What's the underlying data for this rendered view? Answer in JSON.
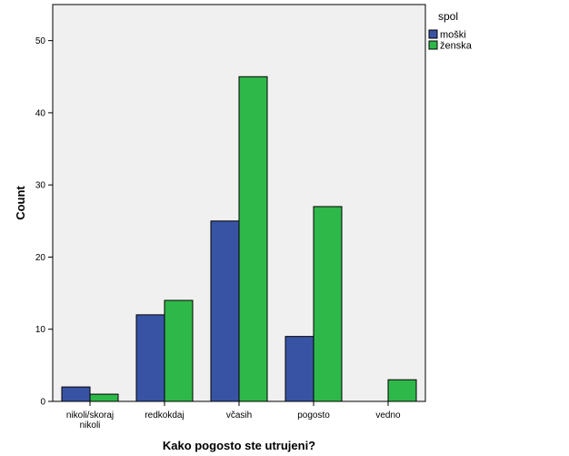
{
  "chart_data": {
    "type": "bar",
    "xlabel": "Kako pogosto ste utrujeni?",
    "ylabel": "Count",
    "ylim": [
      0,
      55
    ],
    "yticks": [
      0,
      10,
      20,
      30,
      40,
      50
    ],
    "categories": [
      [
        "nikoli/skoraj",
        "nikoli"
      ],
      [
        "redkokdaj"
      ],
      [
        "včasih"
      ],
      [
        "pogosto"
      ],
      [
        "vedno"
      ]
    ],
    "legend_title": "spol",
    "legend_position": "top-right",
    "grid": false,
    "series": [
      {
        "name": "moški",
        "color": "#3953a4",
        "values": [
          2,
          12,
          25,
          9,
          0
        ]
      },
      {
        "name": "ženska",
        "color": "#2fb84a",
        "values": [
          1,
          14,
          45,
          27,
          3
        ]
      }
    ],
    "plot_background": "#f0f0f0"
  }
}
